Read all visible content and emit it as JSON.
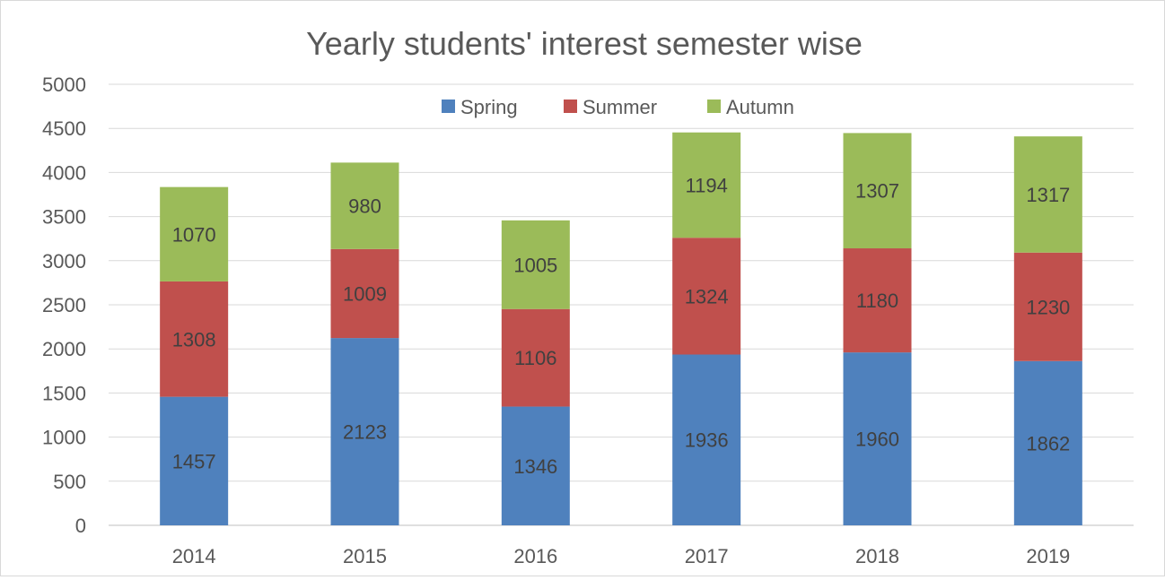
{
  "chart_data": {
    "type": "bar",
    "stacked": true,
    "title": "Yearly students' interest semester wise",
    "xlabel": "",
    "ylabel": "",
    "categories": [
      "2014",
      "2015",
      "2016",
      "2017",
      "2018",
      "2019"
    ],
    "ylim": [
      0,
      5000
    ],
    "yticks": [
      0,
      500,
      1000,
      1500,
      2000,
      2500,
      3000,
      3500,
      4000,
      4500,
      5000
    ],
    "grid": true,
    "legend_position": "top-center",
    "series": [
      {
        "name": "Spring",
        "color": "#4f81bd",
        "values": [
          1457,
          2123,
          1346,
          1936,
          1960,
          1862
        ]
      },
      {
        "name": "Summer",
        "color": "#c0504d",
        "values": [
          1308,
          1009,
          1106,
          1324,
          1180,
          1230
        ]
      },
      {
        "name": "Autumn",
        "color": "#9bbb59",
        "values": [
          1070,
          980,
          1005,
          1194,
          1307,
          1317
        ]
      }
    ]
  }
}
